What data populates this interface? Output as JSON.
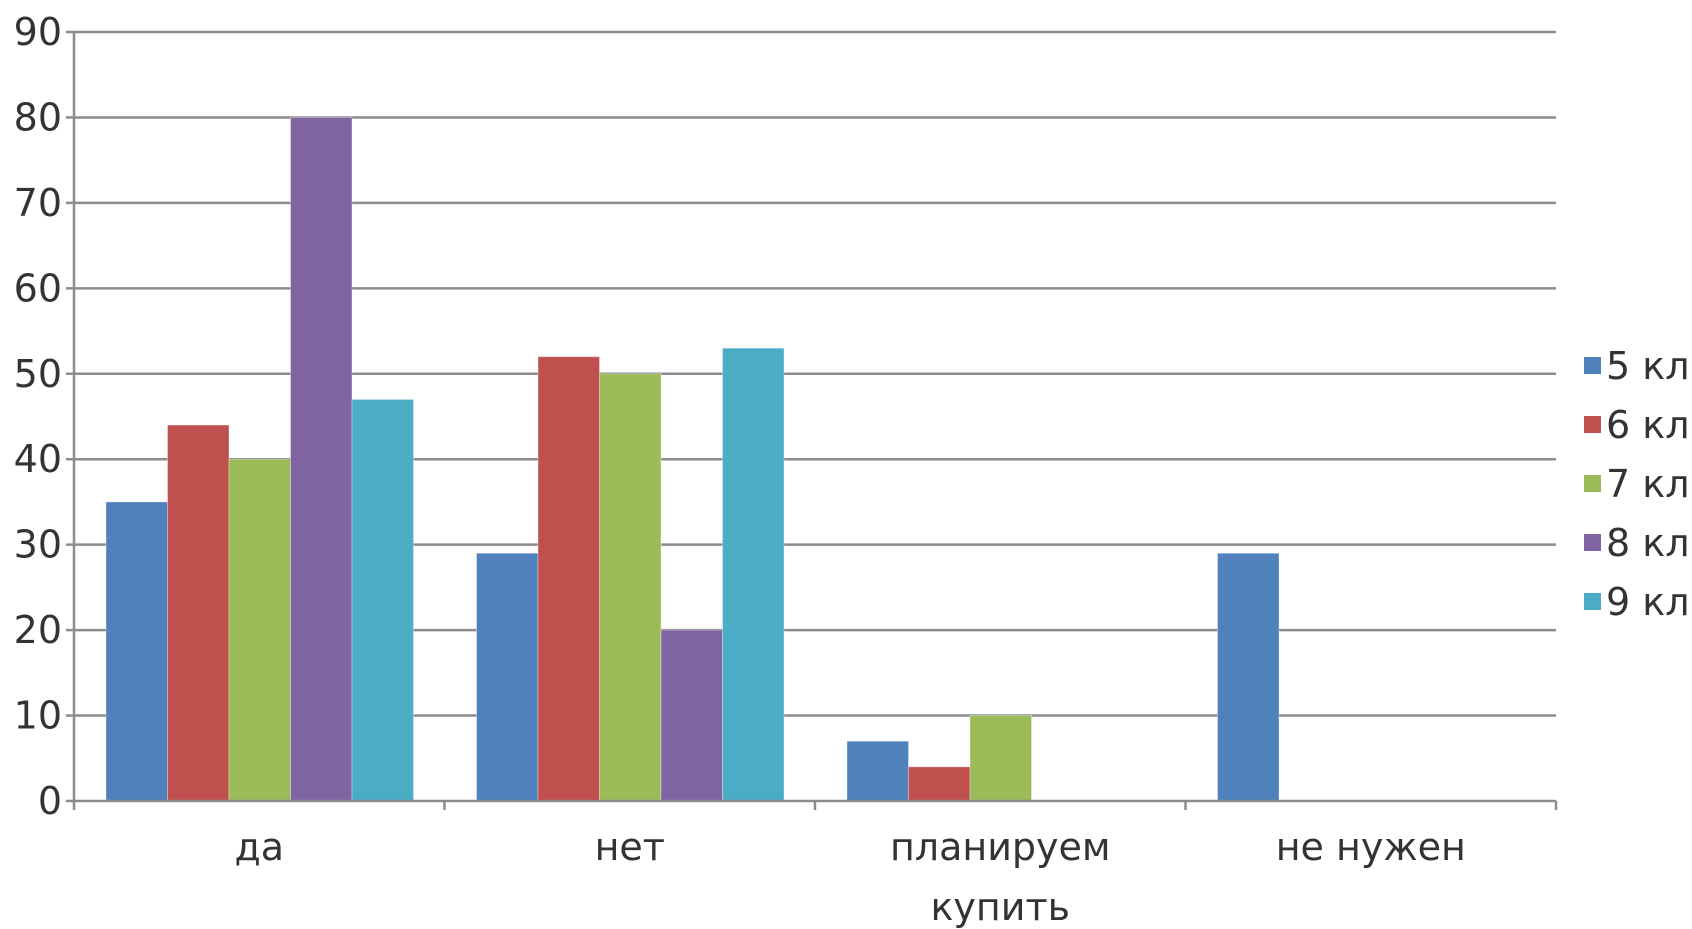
{
  "chart_data": {
    "type": "bar",
    "categories": [
      [
        "да"
      ],
      [
        "нет"
      ],
      [
        "планируем",
        "купить"
      ],
      [
        "не нужен"
      ]
    ],
    "series": [
      {
        "name": "5 кл",
        "color": "#4f81bd",
        "values": [
          35,
          29,
          7,
          29
        ]
      },
      {
        "name": "6 кл",
        "color": "#c0504d",
        "values": [
          44,
          52,
          4,
          0
        ]
      },
      {
        "name": "7 кл",
        "color": "#9bbb59",
        "values": [
          40,
          50,
          10,
          0
        ]
      },
      {
        "name": "8 кл",
        "color": "#8064a2",
        "values": [
          80,
          20,
          0,
          0
        ]
      },
      {
        "name": "9 кл",
        "color": "#4bacc6",
        "values": [
          47,
          53,
          0,
          0
        ]
      }
    ],
    "ylim": [
      0,
      90
    ],
    "yticks": [
      0,
      10,
      20,
      30,
      40,
      50,
      60,
      70,
      80,
      90
    ],
    "grid": true,
    "legend": "right"
  }
}
